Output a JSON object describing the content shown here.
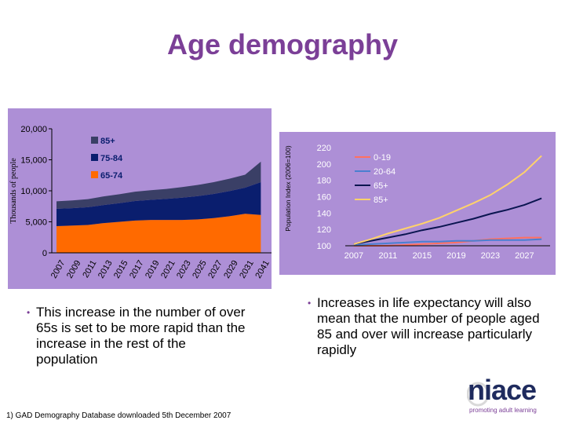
{
  "slide": {
    "title": "Age demography",
    "bullet_left": "This increase in the number of over 65s is set to be more rapid than the increase in the rest of the population",
    "bullet_right": "Increases in life expectancy will also mean that the number of people aged 85 and over will increase particularly rapidly",
    "footnote": "1) GAD Demography Database downloaded 5th December 2007",
    "logo": {
      "wordmark": "niace",
      "tagline": "promoting adult learning"
    },
    "colors": {
      "title": "#7b3f97",
      "panel": "#ad8fd6",
      "logo_navy": "#1f2b5e"
    }
  },
  "chart_data": [
    {
      "type": "area",
      "stacked": true,
      "title": "",
      "xlabel": "",
      "ylabel": "Thousands of people",
      "x": [
        2007,
        2009,
        2011,
        2013,
        2015,
        2017,
        2019,
        2021,
        2023,
        2025,
        2027,
        2029,
        2031,
        2041
      ],
      "x_tick_labels": [
        "2007",
        "2009",
        "2011",
        "2013",
        "2015",
        "2017",
        "2019",
        "2021",
        "2023",
        "2025",
        "2027",
        "2029",
        "2031",
        "2041"
      ],
      "ylim": [
        0,
        20000
      ],
      "y_ticks": [
        0,
        5000,
        10000,
        15000,
        20000
      ],
      "y_tick_labels": [
        "0",
        "5,000",
        "10,000",
        "15,000",
        "20,000"
      ],
      "legend_placement": "top-center",
      "series": [
        {
          "name": "65-74",
          "color": "#ff6a00",
          "values": [
            4300,
            4400,
            4500,
            4800,
            5000,
            5200,
            5300,
            5300,
            5300,
            5400,
            5600,
            5900,
            6300,
            6100
          ]
        },
        {
          "name": "75-84",
          "color": "#0a1e6e",
          "values": [
            2800,
            2800,
            2850,
            2900,
            3000,
            3150,
            3250,
            3400,
            3600,
            3750,
            3900,
            4050,
            4200,
            5300
          ]
        },
        {
          "name": "85+",
          "color": "#3a3f66",
          "values": [
            1200,
            1250,
            1300,
            1400,
            1450,
            1500,
            1550,
            1600,
            1700,
            1800,
            1900,
            2000,
            2100,
            3300
          ]
        }
      ]
    },
    {
      "type": "line",
      "title": "",
      "xlabel": "",
      "ylabel": "Population Index (2006=100)",
      "x": [
        2007,
        2009,
        2011,
        2013,
        2015,
        2017,
        2019,
        2021,
        2023,
        2025,
        2027,
        2029
      ],
      "x_tick_labels": [
        "2007",
        "2011",
        "2015",
        "2019",
        "2023",
        "2027"
      ],
      "x_ticks": [
        2007,
        2011,
        2015,
        2019,
        2023,
        2027
      ],
      "ylim": [
        100,
        220
      ],
      "y_ticks": [
        100,
        120,
        140,
        160,
        180,
        200,
        220
      ],
      "y_tick_labels": [
        "100",
        "120",
        "140",
        "160",
        "180",
        "200",
        "220"
      ],
      "legend_placement": "top-left",
      "series": [
        {
          "name": "0-19",
          "color": "#ff7060",
          "values": [
            100,
            100,
            100,
            101,
            102,
            103,
            104,
            106,
            108,
            109,
            110,
            110
          ]
        },
        {
          "name": "20-64",
          "color": "#4a7fd0",
          "values": [
            101,
            102,
            103,
            104,
            105,
            105,
            106,
            106,
            107,
            107,
            107,
            108
          ]
        },
        {
          "name": "65+",
          "color": "#0a1550",
          "values": [
            102,
            106,
            110,
            114,
            119,
            123,
            128,
            133,
            139,
            144,
            150,
            158
          ]
        },
        {
          "name": "85+",
          "color": "#ffd26a",
          "values": [
            102,
            108,
            115,
            121,
            127,
            134,
            143,
            152,
            162,
            175,
            190,
            210
          ]
        }
      ]
    }
  ]
}
